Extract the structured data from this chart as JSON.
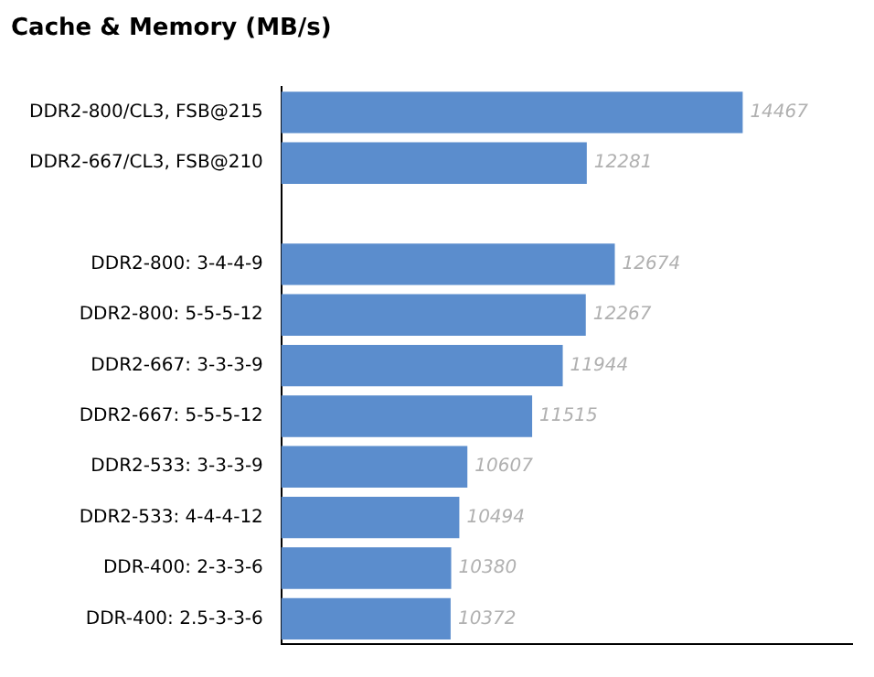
{
  "chart_data": {
    "type": "bar",
    "orientation": "horizontal",
    "title": "Cache & Memory (MB/s)",
    "categories": [
      "DDR2-800/CL3, FSB@215",
      "DDR2-667/CL3, FSB@210",
      null,
      "DDR2-800: 3-4-4-9",
      "DDR2-800: 5-5-5-12",
      "DDR2-667: 3-3-3-9",
      "DDR2-667: 5-5-5-12",
      "DDR2-533: 3-3-3-9",
      "DDR2-533: 4-4-4-12",
      "DDR-400: 2-3-3-6",
      "DDR-400: 2.5-3-3-6"
    ],
    "values": [
      14467,
      12281,
      null,
      12674,
      12267,
      11944,
      11515,
      10607,
      10494,
      10380,
      10372
    ],
    "color": "#5b8dcd",
    "xlim": [
      8000,
      16000
    ],
    "data_labels": true,
    "grid": false,
    "legend": false,
    "tick_labels": "y"
  }
}
